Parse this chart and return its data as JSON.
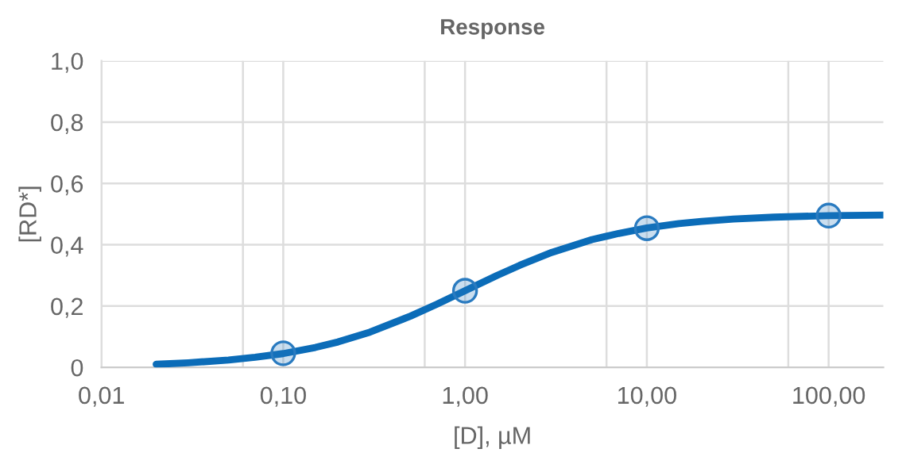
{
  "chart_data": {
    "type": "line",
    "title": "Response",
    "xlabel": "[D], µM",
    "ylabel": "[RD*]",
    "log": "x",
    "grid": true,
    "legend": false,
    "xlim": [
      0.01,
      200
    ],
    "ylim": [
      0,
      1.0
    ],
    "xticks": [
      {
        "value": 0.01,
        "label": "0,01"
      },
      {
        "value": 0.06,
        "label": null
      },
      {
        "value": 0.1,
        "label": "0,10"
      },
      {
        "value": 0.6,
        "label": null
      },
      {
        "value": 1,
        "label": "1,00"
      },
      {
        "value": 6,
        "label": null
      },
      {
        "value": 10,
        "label": "10,00"
      },
      {
        "value": 60,
        "label": null
      },
      {
        "value": 100,
        "label": "100,00"
      }
    ],
    "yticks": [
      0,
      {
        "value": 0.2,
        "label": "0,2"
      },
      {
        "value": 0.4,
        "label": "0,4"
      },
      {
        "value": 0.6,
        "label": "0,6"
      },
      {
        "value": 0.8,
        "label": "0,8"
      },
      {
        "value": 1.0,
        "label": "1,0"
      }
    ],
    "series": [
      {
        "color": "#0b6cb8",
        "line_style": "solid",
        "x": [
          0.02,
          0.03,
          0.05,
          0.07,
          0.1,
          0.15,
          0.2,
          0.3,
          0.5,
          0.7,
          1,
          1.5,
          2,
          3,
          5,
          7,
          10,
          15,
          20,
          30,
          50,
          100,
          200
        ],
        "values": [
          0.01,
          0.015,
          0.024,
          0.033,
          0.045,
          0.065,
          0.083,
          0.115,
          0.167,
          0.206,
          0.25,
          0.3,
          0.333,
          0.375,
          0.417,
          0.437,
          0.455,
          0.469,
          0.476,
          0.484,
          0.49,
          0.495,
          0.497
        ]
      },
      {
        "type": "scatter",
        "color": "#2a7bc0",
        "marker": "circle",
        "x": [
          0.1,
          1,
          10,
          100
        ],
        "values": [
          0.046,
          0.25,
          0.454,
          0.495
        ]
      }
    ]
  }
}
